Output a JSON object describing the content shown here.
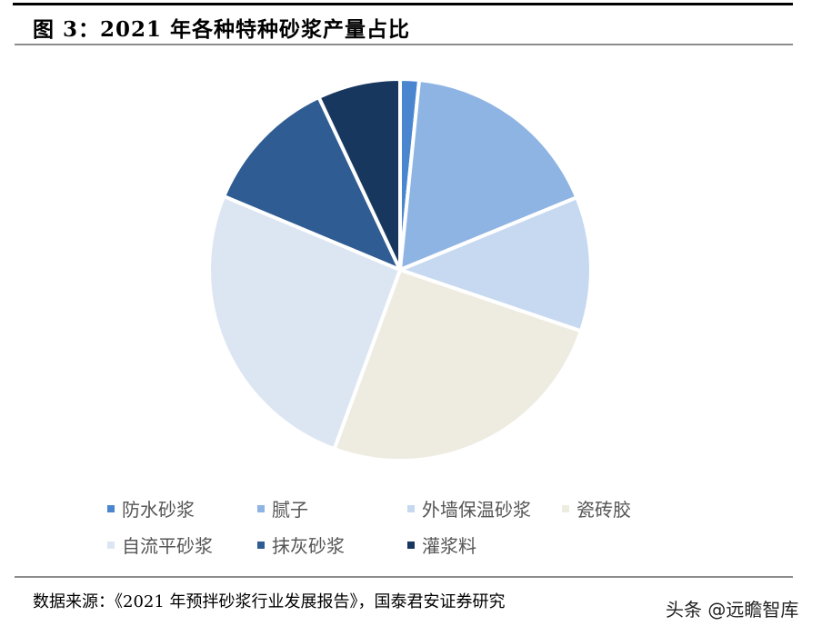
{
  "header": {
    "title": "图 3：2021 年各种特种砂浆产量占比"
  },
  "footer": {
    "source": "数据来源：《2021 年预拌砂浆行业发展报告》，国泰君安证券研究",
    "watermark": "头条 @远瞻智库"
  },
  "chart_data": {
    "type": "pie",
    "title": "2021 年各种特种砂浆产量占比",
    "categories": [
      "防水砂浆",
      "腻子",
      "外墙保温砂浆",
      "瓷砖胶",
      "自流平砂浆",
      "抹灰砂浆",
      "灌浆料"
    ],
    "values": [
      1.6,
      17.2,
      11.4,
      25.4,
      25.7,
      11.7,
      7.0
    ],
    "unit": "%",
    "colors": [
      "#4a86d0",
      "#8eb4e3",
      "#c6d9f1",
      "#eeece1",
      "#dce6f2",
      "#2f5c93",
      "#17375e"
    ],
    "start_angle": "12 o'clock, clockwise",
    "legend_position": "bottom",
    "data_labels": false
  }
}
